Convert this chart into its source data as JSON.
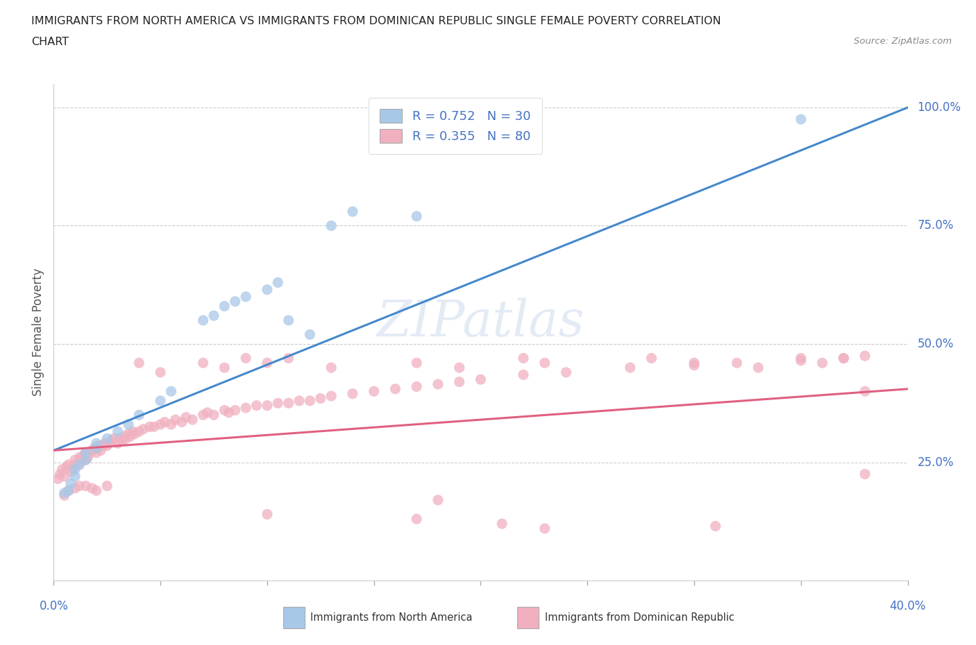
{
  "title_line1": "IMMIGRANTS FROM NORTH AMERICA VS IMMIGRANTS FROM DOMINICAN REPUBLIC SINGLE FEMALE POVERTY CORRELATION",
  "title_line2": "CHART",
  "source": "Source: ZipAtlas.com",
  "ylabel": "Single Female Poverty",
  "yaxis_labels": [
    "25.0%",
    "50.0%",
    "75.0%",
    "100.0%"
  ],
  "watermark": "ZIPatlas",
  "blue_color": "#a8c8e8",
  "pink_color": "#f0b0c0",
  "blue_line_color": "#4488cc",
  "pink_line_color": "#e06080",
  "legend_blue_color": "#a8c8e8",
  "legend_pink_color": "#f0b0c0",
  "blue_scatter_x": [
    0.005,
    0.007,
    0.008,
    0.01,
    0.01,
    0.012,
    0.015,
    0.015,
    0.02,
    0.02,
    0.025,
    0.03,
    0.035,
    0.04,
    0.05,
    0.055,
    0.07,
    0.075,
    0.08,
    0.085,
    0.09,
    0.1,
    0.105,
    0.11,
    0.12,
    0.13,
    0.14,
    0.17,
    0.22,
    0.35
  ],
  "blue_scatter_y": [
    0.185,
    0.19,
    0.205,
    0.22,
    0.235,
    0.245,
    0.255,
    0.27,
    0.28,
    0.29,
    0.3,
    0.315,
    0.33,
    0.35,
    0.38,
    0.4,
    0.55,
    0.56,
    0.58,
    0.59,
    0.6,
    0.615,
    0.63,
    0.55,
    0.52,
    0.75,
    0.78,
    0.77,
    0.975,
    0.975
  ],
  "pink_scatter_x": [
    0.002,
    0.003,
    0.004,
    0.005,
    0.006,
    0.007,
    0.008,
    0.009,
    0.01,
    0.01,
    0.012,
    0.012,
    0.013,
    0.014,
    0.015,
    0.015,
    0.016,
    0.017,
    0.018,
    0.019,
    0.02,
    0.02,
    0.021,
    0.022,
    0.023,
    0.024,
    0.025,
    0.026,
    0.027,
    0.028,
    0.03,
    0.031,
    0.032,
    0.033,
    0.034,
    0.035,
    0.036,
    0.037,
    0.038,
    0.04,
    0.042,
    0.045,
    0.047,
    0.05,
    0.052,
    0.055,
    0.057,
    0.06,
    0.062,
    0.065,
    0.07,
    0.072,
    0.075,
    0.08,
    0.082,
    0.085,
    0.09,
    0.095,
    0.1,
    0.105,
    0.11,
    0.115,
    0.12,
    0.125,
    0.13,
    0.14,
    0.15,
    0.16,
    0.17,
    0.18,
    0.19,
    0.2,
    0.22,
    0.24,
    0.27,
    0.3,
    0.32,
    0.35,
    0.37,
    0.38
  ],
  "pink_scatter_y": [
    0.215,
    0.225,
    0.235,
    0.22,
    0.24,
    0.245,
    0.23,
    0.235,
    0.245,
    0.255,
    0.245,
    0.26,
    0.255,
    0.265,
    0.255,
    0.27,
    0.26,
    0.27,
    0.275,
    0.28,
    0.27,
    0.28,
    0.285,
    0.275,
    0.285,
    0.29,
    0.285,
    0.29,
    0.295,
    0.3,
    0.29,
    0.3,
    0.295,
    0.305,
    0.3,
    0.31,
    0.305,
    0.315,
    0.31,
    0.315,
    0.32,
    0.325,
    0.325,
    0.33,
    0.335,
    0.33,
    0.34,
    0.335,
    0.345,
    0.34,
    0.35,
    0.355,
    0.35,
    0.36,
    0.355,
    0.36,
    0.365,
    0.37,
    0.37,
    0.375,
    0.375,
    0.38,
    0.38,
    0.385,
    0.39,
    0.395,
    0.4,
    0.405,
    0.41,
    0.415,
    0.42,
    0.425,
    0.435,
    0.44,
    0.45,
    0.455,
    0.46,
    0.465,
    0.47,
    0.475
  ],
  "pink_outlier_x": [
    0.005,
    0.007,
    0.01,
    0.012,
    0.015,
    0.018,
    0.02,
    0.025,
    0.1,
    0.17,
    0.18,
    0.21,
    0.23,
    0.31,
    0.38
  ],
  "pink_outlier_y": [
    0.18,
    0.19,
    0.195,
    0.2,
    0.2,
    0.195,
    0.19,
    0.2,
    0.14,
    0.13,
    0.17,
    0.12,
    0.11,
    0.115,
    0.225
  ],
  "pink_high_x": [
    0.04,
    0.05,
    0.07,
    0.08,
    0.09,
    0.1,
    0.11,
    0.13,
    0.17,
    0.19,
    0.22,
    0.23,
    0.28,
    0.3,
    0.33,
    0.35,
    0.36,
    0.37,
    0.38
  ],
  "pink_high_y": [
    0.46,
    0.44,
    0.46,
    0.45,
    0.47,
    0.46,
    0.47,
    0.45,
    0.46,
    0.45,
    0.47,
    0.46,
    0.47,
    0.46,
    0.45,
    0.47,
    0.46,
    0.47,
    0.4
  ],
  "x_min": 0.0,
  "x_max": 0.4,
  "y_min": 0.0,
  "y_max": 1.05,
  "grid_color": "#cccccc",
  "bg_color": "#ffffff",
  "title_color": "#222222",
  "axis_label_color": "#555555",
  "axis_tick_color": "#4472c4",
  "legend_text_color": "#4472c4"
}
